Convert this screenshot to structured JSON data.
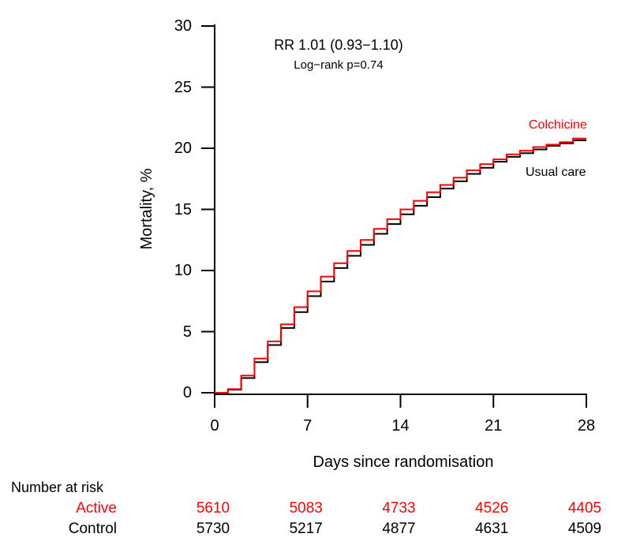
{
  "figure": {
    "annotation_line1": "RR 1.01 (0.93−1.10)",
    "annotation_line2": "Log−rank p=0.74",
    "ylabel": "Mortality, %",
    "xlabel": "Days since randomisation",
    "curve_label_colchicine": "Colchicine",
    "curve_label_usual_care": "Usual care",
    "colors": {
      "colchicine": "#ff0000",
      "usual_care": "#000000",
      "axis": "#000000",
      "background": "#ffffff"
    }
  },
  "chart_data": {
    "type": "line",
    "subtype": "kaplan-meier-cumulative-incidence-step",
    "title": "RR 1.01 (0.93−1.10)",
    "subtitle": "Log−rank p=0.74",
    "xlabel": "Days since randomisation",
    "ylabel": "Mortality, %",
    "xlim": [
      0,
      28
    ],
    "ylim": [
      0,
      30
    ],
    "xticks": [
      0,
      7,
      14,
      21,
      28
    ],
    "yticks": [
      0,
      5,
      10,
      15,
      20,
      25,
      30
    ],
    "grid": false,
    "x": [
      0,
      1,
      2,
      3,
      4,
      5,
      6,
      7,
      8,
      9,
      10,
      11,
      12,
      13,
      14,
      15,
      16,
      17,
      18,
      19,
      20,
      21,
      22,
      23,
      24,
      25,
      26,
      27,
      28
    ],
    "series": [
      {
        "name": "Colchicine",
        "color": "#ff0000",
        "values": [
          0,
          0.3,
          1.4,
          2.8,
          4.2,
          5.6,
          7.0,
          8.3,
          9.5,
          10.6,
          11.6,
          12.5,
          13.4,
          14.2,
          15.0,
          15.7,
          16.4,
          17.0,
          17.6,
          18.2,
          18.7,
          19.1,
          19.5,
          19.8,
          20.1,
          20.3,
          20.5,
          20.8,
          20.8
        ]
      },
      {
        "name": "Usual care",
        "color": "#000000",
        "values": [
          0,
          0.25,
          1.2,
          2.5,
          3.9,
          5.3,
          6.6,
          7.9,
          9.1,
          10.2,
          11.2,
          12.1,
          13.0,
          13.8,
          14.6,
          15.3,
          16.0,
          16.7,
          17.3,
          17.9,
          18.4,
          18.9,
          19.3,
          19.6,
          19.9,
          20.2,
          20.4,
          20.65,
          20.65
        ]
      }
    ],
    "legend_position": "labels-at-line-end"
  },
  "number_at_risk": {
    "title": "Number at risk",
    "days": [
      0,
      7,
      14,
      21,
      28
    ],
    "rows": [
      {
        "label": "Active",
        "color": "#ff0000",
        "values": [
          "5610",
          "5083",
          "4733",
          "4526",
          "4405"
        ]
      },
      {
        "label": "Control",
        "color": "#000000",
        "values": [
          "5730",
          "5217",
          "4877",
          "4631",
          "4509"
        ]
      }
    ]
  }
}
